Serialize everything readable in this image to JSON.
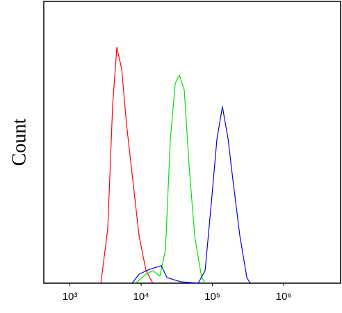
{
  "chart_data": {
    "type": "line",
    "y_label": "Count",
    "log_x": true,
    "xlim": [
      430,
      6300000
    ],
    "ylim": [
      0,
      100
    ],
    "xticks": [
      {
        "value": 1000,
        "label": "10³"
      },
      {
        "value": 10000,
        "label": "10⁴"
      },
      {
        "value": 100000,
        "label": "10⁵"
      },
      {
        "value": 1000000,
        "label": "10⁶"
      }
    ],
    "series": [
      {
        "color": "#ff0000",
        "x": [
          2720,
          3400,
          3980,
          4560,
          5330,
          6240,
          7460,
          9350,
          11700,
          14600
        ],
        "values": [
          0,
          19.2,
          63.5,
          83.7,
          75.9,
          56.2,
          38.9,
          16.7,
          4.4,
          0
        ]
      },
      {
        "color": "#00e000",
        "x": [
          8360,
          11700,
          14600,
          18300,
          21900,
          25700,
          30100,
          34400,
          40300,
          47100,
          56400,
          70600,
          79000
        ],
        "values": [
          0,
          3.2,
          4.4,
          2.5,
          11.8,
          51.2,
          70.9,
          73.9,
          68.5,
          41.4,
          16.7,
          2.0,
          0
        ]
      },
      {
        "color": "#0000e0",
        "x": [
          7460,
          9350,
          13100,
          19200,
          23000,
          35900,
          63100,
          79000,
          98900,
          115700,
          138400,
          166000,
          194000,
          243000,
          304000,
          340000
        ],
        "values": [
          0,
          3.2,
          4.9,
          6.2,
          2.0,
          0.5,
          0,
          4.4,
          31.5,
          51.2,
          62.6,
          51.2,
          36.5,
          16.7,
          2.0,
          0
        ]
      }
    ]
  }
}
